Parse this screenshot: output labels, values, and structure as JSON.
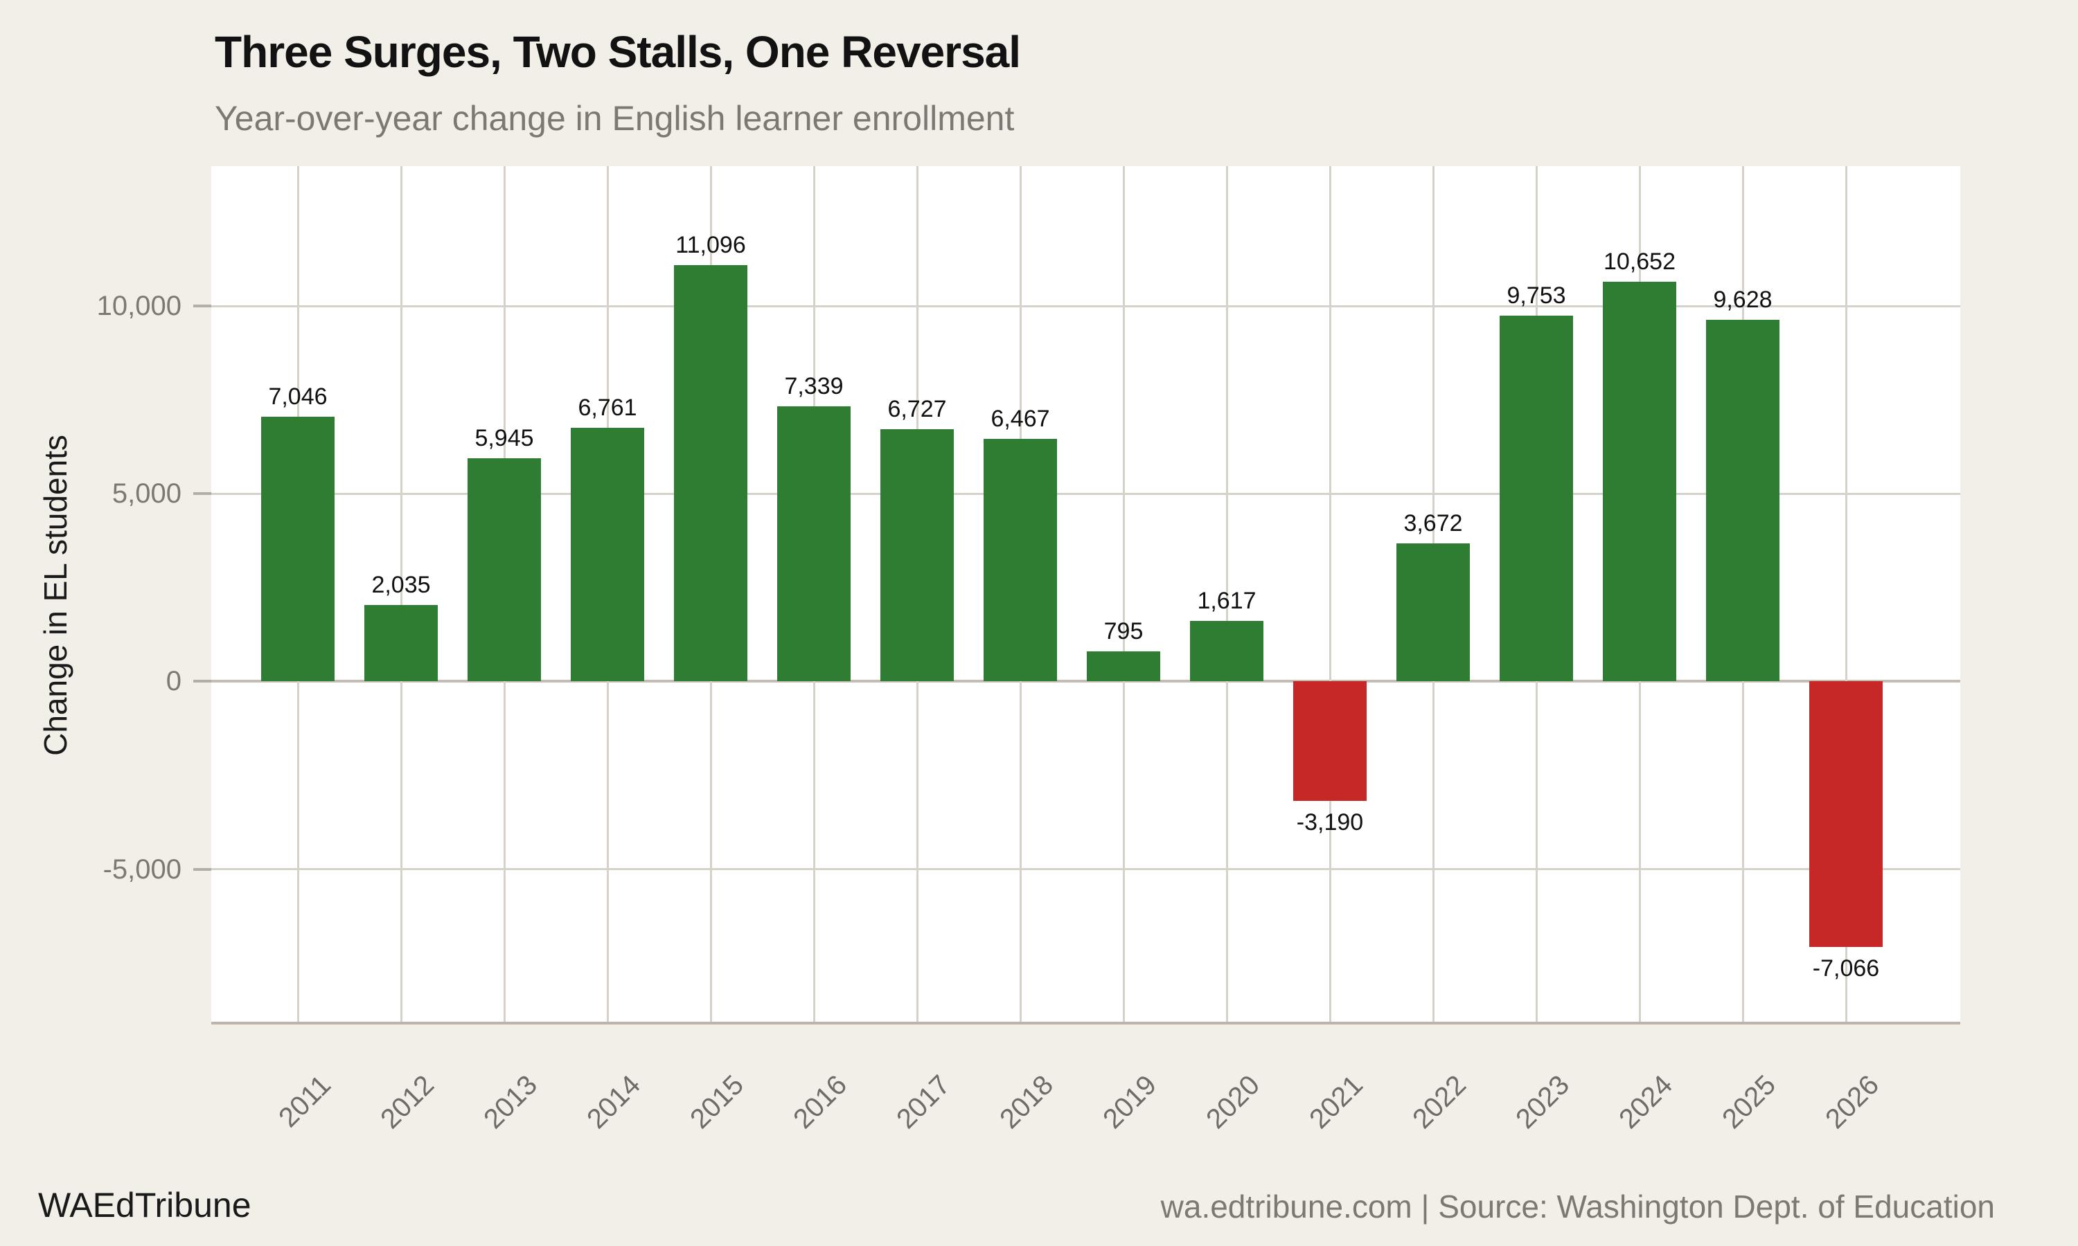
{
  "chart_data": {
    "type": "bar",
    "title": "Three Surges, Two Stalls, One Reversal",
    "subtitle": "Year-over-year change in English learner enrollment",
    "ylabel": "Change in EL students",
    "xlabel": "",
    "categories": [
      "2011",
      "2012",
      "2013",
      "2014",
      "2015",
      "2016",
      "2017",
      "2018",
      "2019",
      "2020",
      "2021",
      "2022",
      "2023",
      "2024",
      "2025",
      "2026"
    ],
    "values": [
      7046,
      2035,
      5945,
      6761,
      11096,
      7339,
      6727,
      6467,
      795,
      1617,
      -3190,
      3672,
      9753,
      10652,
      9628,
      -7066
    ],
    "value_labels": [
      "7,046",
      "2,035",
      "5,945",
      "6,761",
      "11,096",
      "7,339",
      "6,727",
      "6,467",
      "795",
      "1,617",
      "-3,190",
      "3,672",
      "9,753",
      "10,652",
      "9,628",
      "-7,066"
    ],
    "yticks": [
      {
        "value": -5000,
        "label": "-5,000"
      },
      {
        "value": 0,
        "label": "0"
      },
      {
        "value": 5000,
        "label": "5,000"
      },
      {
        "value": 10000,
        "label": "10,000"
      }
    ],
    "ylim": [
      -9140,
      13730
    ],
    "grid": true,
    "legend_position": "none",
    "colors": {
      "positive_bar": "#2e7d32",
      "negative_bar": "#c62828",
      "figure_background": "#f2efe9",
      "plot_background": "#ffffff",
      "gridline": "#d7d2c9",
      "zero_line": "#c2bcb2",
      "tick_text": "#7c7872",
      "value_text": "#111111"
    }
  },
  "footer": {
    "brand": "WAEdTribune",
    "source": "wa.edtribune.com | Source: Washington Dept. of Education"
  }
}
